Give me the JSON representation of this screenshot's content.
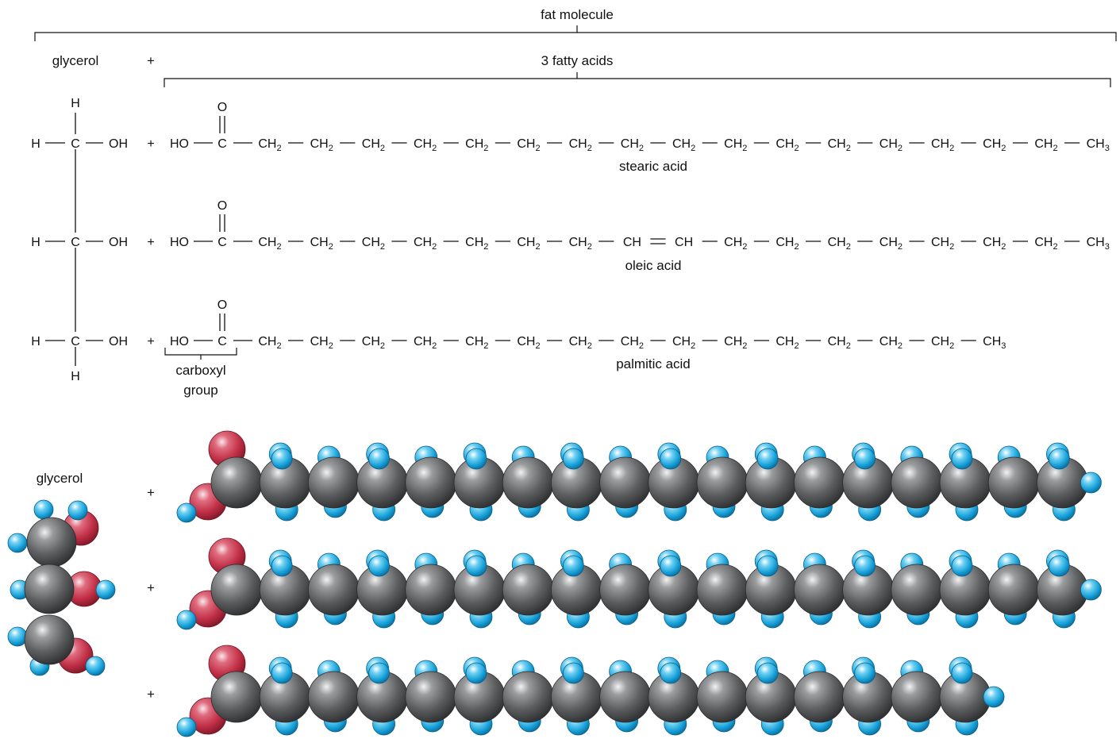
{
  "labels": {
    "fat_molecule": "fat molecule",
    "glycerol": "glycerol",
    "plus": "+",
    "fatty_acids": "3 fatty acids",
    "carboxyl_group_line1": "carboxyl",
    "carboxyl_group_line2": "group",
    "glycerol_model": "glycerol"
  },
  "glycerol": {
    "H": "H",
    "C": "C",
    "OH": "OH"
  },
  "carboxyl": {
    "HO": "HO",
    "C": "C",
    "O": "O"
  },
  "groups": {
    "CH2_base": "CH",
    "CH2_sub": "2",
    "CH3_base": "CH",
    "CH3_sub": "3",
    "CH": "CH"
  },
  "acids": [
    {
      "name": "stearic acid",
      "chain": [
        "CH2",
        "CH2",
        "CH2",
        "CH2",
        "CH2",
        "CH2",
        "CH2",
        "CH2",
        "CH2",
        "CH2",
        "CH2",
        "CH2",
        "CH2",
        "CH2",
        "CH2",
        "CH2",
        "CH3"
      ]
    },
    {
      "name": "oleic acid",
      "chain": [
        "CH2",
        "CH2",
        "CH2",
        "CH2",
        "CH2",
        "CH2",
        "CH2",
        "CH",
        "=CH",
        "CH2",
        "CH2",
        "CH2",
        "CH2",
        "CH2",
        "CH2",
        "CH2",
        "CH3"
      ]
    },
    {
      "name": "palmitic acid",
      "chain": [
        "CH2",
        "CH2",
        "CH2",
        "CH2",
        "CH2",
        "CH2",
        "CH2",
        "CH2",
        "CH2",
        "CH2",
        "CH2",
        "CH2",
        "CH2",
        "CH2",
        "CH3"
      ]
    }
  ],
  "colors": {
    "carbon": "#4a4b4d",
    "oxygen": "#b8293c",
    "hydrogen": "#1fa0d4"
  }
}
